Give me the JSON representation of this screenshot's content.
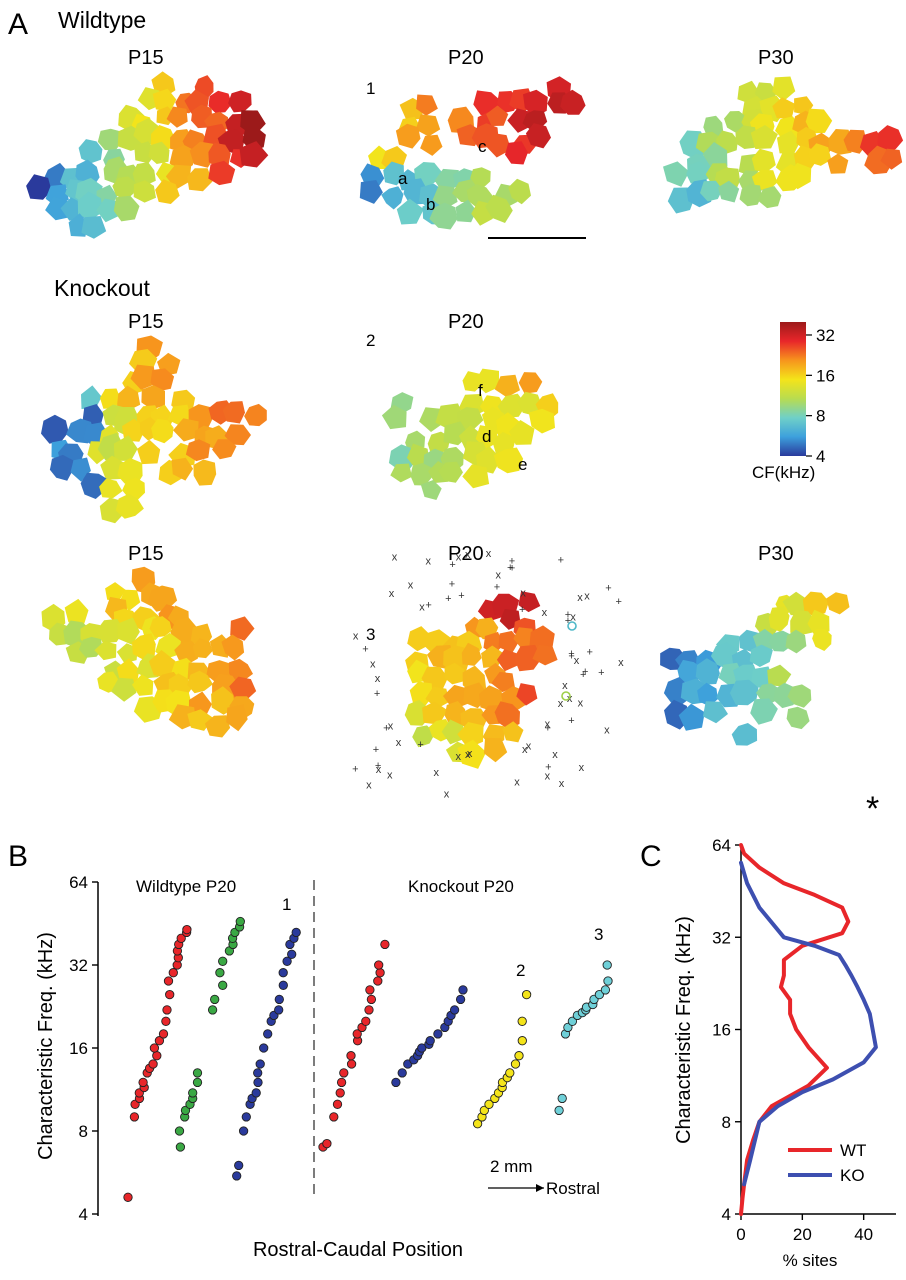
{
  "panel_labels": {
    "a": "A",
    "b": "B",
    "c": "C"
  },
  "panel_a": {
    "wildtype_heading": "Wildtype",
    "knockout_heading": "Knockout",
    "maps": [
      {
        "title": "P15",
        "number": ""
      },
      {
        "title": "P20",
        "number": "1",
        "letters": [
          "a",
          "b",
          "c"
        ]
      },
      {
        "title": "P30",
        "number": ""
      },
      {
        "title": "P15",
        "number": ""
      },
      {
        "title": "P20",
        "number": "2",
        "letters": [
          "f",
          "d",
          "e"
        ]
      },
      {
        "title": "P15",
        "number": ""
      },
      {
        "title": "P20",
        "number": "3"
      },
      {
        "title": "P30",
        "number": ""
      }
    ],
    "colorbar": {
      "ticks": [
        "32",
        "16",
        "8",
        "4"
      ],
      "tick_values_khz": [
        32,
        16,
        8,
        4
      ],
      "range_khz": [
        4,
        40
      ],
      "label": "CF(kHz)",
      "colors": [
        "#2a3a9c",
        "#3da0dc",
        "#6fd0c8",
        "#b8dc50",
        "#f4e41a",
        "#f7941d",
        "#e8262a",
        "#9c1a1a"
      ]
    }
  },
  "chart_data": [
    {
      "type": "scatter",
      "panel": "B",
      "ylabel": "Characteristic Freq. (kHz)",
      "xlabel": "Rostral-Caudal Position",
      "yscale": "log2",
      "yticks": [
        "64",
        "32",
        "16",
        "8",
        "4"
      ],
      "ylim": [
        4,
        64
      ],
      "group_labels": [
        "Wildtype P20",
        "Knockout P20"
      ],
      "scale_bar": {
        "label": "2 mm",
        "direction": "Rostral"
      },
      "series": [
        {
          "name": "1",
          "color": "#2a3a9c",
          "group": "Wildtype P20",
          "x": [
            0.0,
            0.1,
            0.2,
            0.3,
            0.4,
            0.5,
            0.6,
            0.7,
            0.8,
            0.9,
            1.0,
            1.1,
            1.2,
            1.3,
            1.4,
            1.5,
            1.6,
            1.7,
            1.8,
            1.9,
            2.0,
            2.1,
            2.2
          ],
          "y": [
            5.5,
            6,
            8,
            9,
            10,
            10.5,
            11,
            12,
            13,
            14,
            16,
            18,
            20,
            21,
            22,
            24,
            27,
            30,
            33,
            35,
            38,
            40,
            42
          ]
        },
        {
          "name": "",
          "color": "#e8262a",
          "group": "Wildtype P20",
          "x": [
            -1.5,
            0.0,
            0.1,
            0.2,
            0.3,
            0.4,
            0.5,
            0.6,
            0.7,
            0.8,
            0.9,
            1.0,
            1.1,
            1.2,
            1.3,
            1.4,
            1.5,
            1.6,
            1.7,
            1.8,
            1.9,
            2.0,
            2.1,
            2.2,
            2.3,
            2.4
          ],
          "y": [
            4.6,
            9,
            10,
            10.5,
            11,
            11.5,
            12,
            13,
            13.5,
            14,
            15,
            16,
            17,
            18,
            20,
            22,
            25,
            28,
            30,
            32,
            34,
            36,
            38,
            40,
            42,
            43
          ]
        },
        {
          "name": "",
          "color": "#3aa844",
          "group": "Wildtype P20",
          "x": [
            0.0,
            0.1,
            0.2,
            0.3,
            0.4,
            0.5,
            0.6,
            0.7,
            0.8,
            1.5,
            1.6,
            1.7,
            1.8,
            1.9,
            2.0,
            2.1,
            2.2,
            2.3,
            2.4,
            2.5
          ],
          "y": [
            7,
            8,
            9,
            9.5,
            10,
            10.5,
            11,
            12,
            13,
            22,
            24,
            27,
            30,
            33,
            36,
            38,
            40,
            42,
            44,
            46
          ]
        },
        {
          "name": "",
          "color": "#e8262a",
          "group": "Knockout P20",
          "x": [
            0.0,
            0.1,
            0.3,
            0.4,
            0.5,
            0.6,
            0.7,
            0.8,
            0.9,
            1.0,
            1.1,
            1.2,
            1.3,
            1.4,
            1.5,
            1.6,
            1.7,
            1.8,
            1.9,
            2.0
          ],
          "y": [
            7,
            7.2,
            9,
            10,
            11,
            12,
            13,
            14,
            15,
            17,
            18,
            19,
            20,
            22,
            24,
            26,
            28,
            30,
            32,
            38
          ]
        },
        {
          "name": "",
          "color": "#2a3a9c",
          "group": "Knockout P20",
          "x": [
            0.0,
            0.2,
            0.4,
            0.6,
            0.8,
            1.0,
            1.2,
            1.4,
            1.6,
            1.8,
            2.0,
            2.2,
            2.4,
            2.6,
            2.8,
            3.0
          ],
          "y": [
            12,
            13,
            14,
            14.5,
            15,
            15.5,
            16,
            16.5,
            17,
            18,
            19,
            20,
            21,
            22,
            24,
            26
          ]
        },
        {
          "name": "2",
          "color": "#f4e41a",
          "group": "Knockout P20",
          "x": [
            0.0,
            0.15,
            0.3,
            0.45,
            0.6,
            0.75,
            0.9,
            1.05,
            1.2,
            1.35,
            1.5,
            1.65,
            1.8,
            1.95,
            2.1
          ],
          "y": [
            8.5,
            9,
            9.5,
            10,
            10.5,
            11,
            11.5,
            12,
            12.5,
            13,
            14,
            15,
            17,
            20,
            25
          ]
        },
        {
          "name": "3",
          "color": "#6fd0d8",
          "group": "Knockout P20",
          "x": [
            0.0,
            0.1,
            0.2,
            0.3,
            0.4,
            0.5,
            0.6,
            0.7,
            0.8,
            0.9,
            1.0,
            1.1,
            1.2,
            1.3,
            1.4
          ],
          "y": [
            9.5,
            10.5,
            18,
            19,
            20,
            21,
            21.5,
            22,
            22.5,
            23,
            24,
            25,
            26,
            28,
            32
          ]
        }
      ]
    },
    {
      "type": "line",
      "panel": "C",
      "ylabel": "Characteristic Freq. (kHz)",
      "xlabel": "% sites",
      "yscale": "log2",
      "yticks": [
        "64",
        "32",
        "16",
        "8",
        "4"
      ],
      "xticks": [
        "0",
        "20",
        "40"
      ],
      "xlim": [
        0,
        45
      ],
      "ylim": [
        4,
        64
      ],
      "significance_marker": "*",
      "series": [
        {
          "name": "WT",
          "color": "#e8262a",
          "x": [
            0,
            1,
            6,
            14,
            24,
            33,
            35,
            33,
            20,
            14,
            14,
            13,
            16,
            16,
            18,
            22,
            28,
            22,
            10,
            6,
            4,
            2,
            1,
            0.5,
            0
          ],
          "y": [
            64,
            60,
            54,
            48,
            44,
            40,
            36,
            33,
            30,
            27,
            24,
            22,
            20,
            18,
            16,
            14,
            12,
            10.5,
            9,
            8,
            7,
            6,
            5,
            4.5,
            4
          ]
        },
        {
          "name": "KO",
          "color": "#3d4fb0",
          "x": [
            0,
            2,
            6,
            14,
            24,
            32,
            34,
            36,
            38,
            40,
            42,
            44,
            40,
            30,
            20,
            12,
            6,
            3,
            1
          ],
          "y": [
            56,
            48,
            40,
            32,
            30,
            28,
            26,
            24,
            22,
            20,
            18,
            14,
            12.5,
            11,
            10,
            9,
            8,
            6,
            5
          ]
        }
      ]
    }
  ]
}
